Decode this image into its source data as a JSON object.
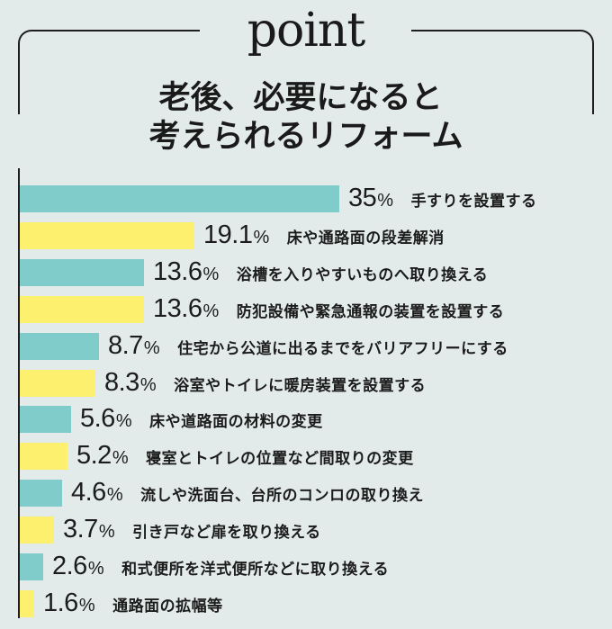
{
  "header": {
    "point_word": "point",
    "title_line1": "老後、必要になると",
    "title_line2": "考えられるリフォーム"
  },
  "colors": {
    "background": "#e3ebea",
    "teal": "#80cccb",
    "yellow": "#fdf06e",
    "text": "#1c1c1c",
    "frame": "#1e1e1e"
  },
  "bars": [
    {
      "value": "35",
      "unit": "%",
      "label": "手すりを設置する",
      "color": "teal"
    },
    {
      "value": "19.1",
      "unit": "%",
      "label": "床や通路面の段差解消",
      "color": "yellow"
    },
    {
      "value": "13.6",
      "unit": "%",
      "label": "浴槽を入りやすいものへ取り換える",
      "color": "teal"
    },
    {
      "value": "13.6",
      "unit": "%",
      "label": "防犯設備や緊急通報の装置を設置する",
      "color": "yellow"
    },
    {
      "value": "8.7",
      "unit": "%",
      "label": "住宅から公道に出るまでをバリアフリーにする",
      "color": "teal"
    },
    {
      "value": "8.3",
      "unit": "%",
      "label": "浴室やトイレに暖房装置を設置する",
      "color": "yellow"
    },
    {
      "value": "5.6",
      "unit": "%",
      "label": "床や道路面の材料の変更",
      "color": "teal"
    },
    {
      "value": "5.2",
      "unit": "%",
      "label": "寝室とトイレの位置など間取りの変更",
      "color": "yellow"
    },
    {
      "value": "4.6",
      "unit": "%",
      "label": "流しや洗面台、台所のコンロの取り換え",
      "color": "teal"
    },
    {
      "value": "3.7",
      "unit": "%",
      "label": "引き戸など扉を取り換える",
      "color": "yellow"
    },
    {
      "value": "2.6",
      "unit": "%",
      "label": "和式便所を洋式便所などに取り換える",
      "color": "teal"
    },
    {
      "value": "1.6",
      "unit": "%",
      "label": "通路面の拡幅等",
      "color": "yellow"
    }
  ],
  "chart_data": {
    "type": "bar",
    "orientation": "horizontal",
    "title": "老後、必要になると考えられるリフォーム",
    "header_word": "point",
    "categories": [
      "手すりを設置する",
      "床や通路面の段差解消",
      "浴槽を入りやすいものへ取り換える",
      "防犯設備や緊急通報の装置を設置する",
      "住宅から公道に出るまでをバリアフリーにする",
      "浴室やトイレに暖房装置を設置する",
      "床や道路面の材料の変更",
      "寝室とトイレの位置など間取りの変更",
      "流しや洗面台、台所のコンロの取り換え",
      "引き戸など扉を取り換える",
      "和式便所を洋式便所などに取り換える",
      "通路面の拡幅等"
    ],
    "values": [
      35,
      19.1,
      13.6,
      13.6,
      8.7,
      8.3,
      5.6,
      5.2,
      4.6,
      3.7,
      2.6,
      1.6
    ],
    "unit": "%",
    "xlabel": "",
    "ylabel": "",
    "grid": false,
    "legend": null,
    "bar_colors_alternating": [
      "#80cccb",
      "#fdf06e"
    ],
    "data_labels": true
  }
}
